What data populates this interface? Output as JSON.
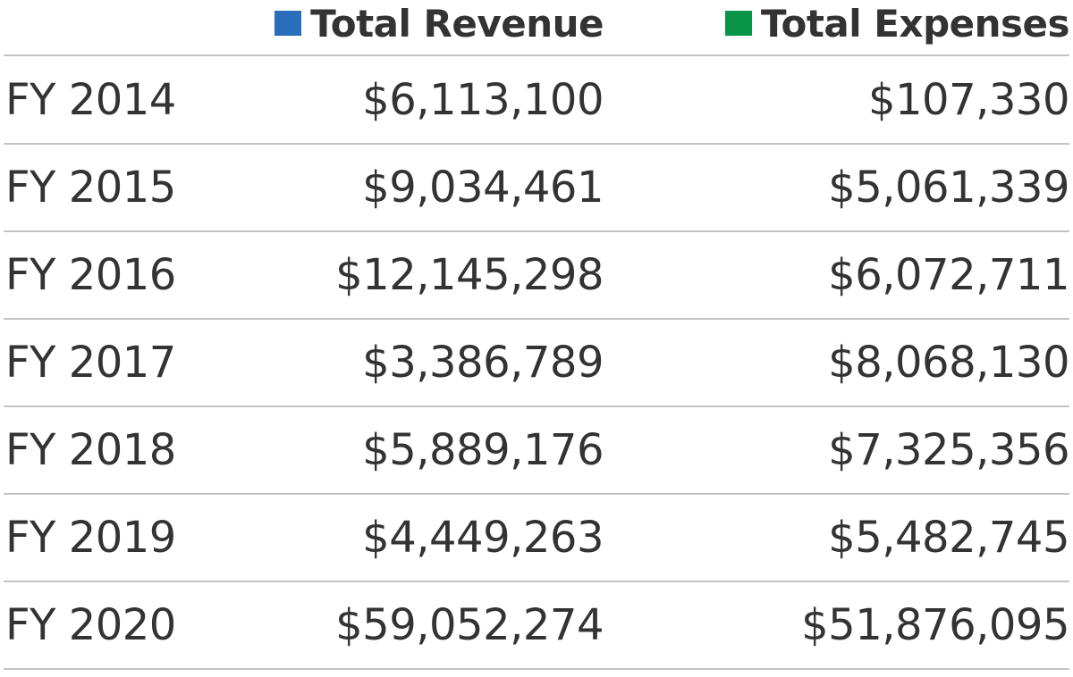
{
  "chart_data": {
    "type": "table",
    "columns": [
      {
        "name": "Total Revenue",
        "color": "#2a6ebb"
      },
      {
        "name": "Total Expenses",
        "color": "#0a9447"
      }
    ],
    "rows": [
      {
        "label": "FY 2014",
        "revenue": "$6,113,100",
        "expenses": "$107,330"
      },
      {
        "label": "FY 2015",
        "revenue": "$9,034,461",
        "expenses": "$5,061,339"
      },
      {
        "label": "FY 2016",
        "revenue": "$12,145,298",
        "expenses": "$6,072,711"
      },
      {
        "label": "FY 2017",
        "revenue": "$3,386,789",
        "expenses": "$8,068,130"
      },
      {
        "label": "FY 2018",
        "revenue": "$5,889,176",
        "expenses": "$7,325,356"
      },
      {
        "label": "FY 2019",
        "revenue": "$4,449,263",
        "expenses": "$5,482,745"
      },
      {
        "label": "FY 2020",
        "revenue": "$59,052,274",
        "expenses": "$51,876,095"
      }
    ]
  }
}
